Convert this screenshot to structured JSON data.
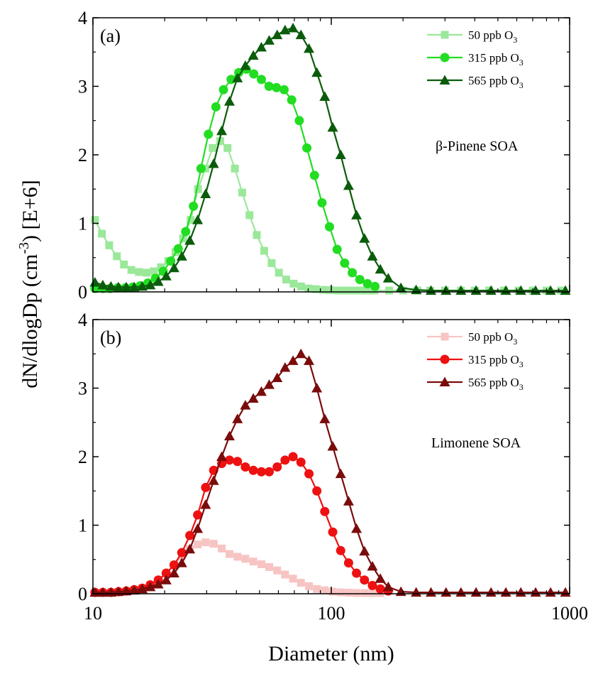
{
  "chart_data": [
    {
      "type": "line",
      "panel": "(a)",
      "annotation": "β-Pinene SOA",
      "xlabel": "",
      "ylabel": "",
      "xscale": "log",
      "xlim": [
        10,
        1000
      ],
      "ylim": [
        0,
        4
      ],
      "x_ticks": [
        10,
        100,
        1000
      ],
      "y_ticks": [
        0,
        1,
        2,
        3,
        4
      ],
      "x_tick_labels": [
        "",
        "",
        ""
      ],
      "y_tick_labels": [
        "0",
        "1",
        "2",
        "3",
        "4"
      ],
      "legend_position": "top-right",
      "series": [
        {
          "name": "50 ppb O3",
          "legend_base": "50 ppb O",
          "legend_sub": "3",
          "marker": "square",
          "color": "#9be89b",
          "x": [
            10.2,
            10.9,
            11.7,
            12.6,
            13.5,
            14.5,
            15.6,
            16.8,
            18.0,
            19.3,
            20.7,
            22.2,
            23.9,
            25.7,
            27.6,
            29.6,
            31.8,
            34.2,
            36.7,
            39.4,
            42.3,
            45.4,
            48.7,
            52.3,
            56.2,
            60.3,
            64.7,
            69.5,
            74.6,
            80.1,
            86.0,
            92.3,
            99.1,
            106.4,
            114.2,
            122.6,
            131.7,
            141.4,
            151.8,
            175,
            200,
            230,
            260,
            300,
            350,
            400,
            460,
            530,
            610,
            700,
            800,
            920
          ],
          "y": [
            1.05,
            0.85,
            0.68,
            0.52,
            0.4,
            0.32,
            0.29,
            0.28,
            0.3,
            0.36,
            0.45,
            0.58,
            0.78,
            1.05,
            1.5,
            1.8,
            2.1,
            2.2,
            2.1,
            1.8,
            1.45,
            1.12,
            0.83,
            0.6,
            0.42,
            0.28,
            0.18,
            0.12,
            0.08,
            0.05,
            0.04,
            0.03,
            0.025,
            0.02,
            0.02,
            0.02,
            0.02,
            0.02,
            0.02,
            0.02,
            0.02,
            0.02,
            0.02,
            0.02,
            0.02,
            0.02,
            0.02,
            0.02,
            0.02,
            0.02,
            0.02,
            0.02
          ]
        },
        {
          "name": "315 ppb O3",
          "legend_base": "315 ppb O",
          "legend_sub": "3",
          "marker": "circle",
          "color": "#22dd22",
          "x": [
            10.2,
            11.0,
            11.8,
            12.7,
            13.7,
            14.7,
            15.8,
            17.0,
            18.3,
            19.7,
            21.2,
            22.8,
            24.5,
            26.4,
            28.4,
            30.5,
            32.8,
            35.3,
            38.0,
            40.9,
            44.0,
            47.3,
            50.9,
            54.8,
            58.9,
            63.4,
            68.2,
            73.4,
            79.0,
            85.0,
            91.4,
            98.3,
            105.8,
            113.8,
            122.5,
            131.8,
            141.8,
            152.5
          ],
          "y": [
            0.05,
            0.05,
            0.05,
            0.06,
            0.06,
            0.07,
            0.09,
            0.13,
            0.2,
            0.3,
            0.45,
            0.63,
            0.88,
            1.25,
            1.8,
            2.3,
            2.7,
            2.95,
            3.1,
            3.2,
            3.25,
            3.18,
            3.1,
            3.0,
            2.98,
            2.95,
            2.8,
            2.5,
            2.1,
            1.7,
            1.3,
            0.95,
            0.62,
            0.42,
            0.28,
            0.18,
            0.12,
            0.08
          ]
        },
        {
          "name": "565 ppb O3",
          "legend_base": "565 ppb O",
          "legend_sub": "3",
          "marker": "triangle",
          "color": "#0a5c0a",
          "x": [
            10.2,
            11.0,
            11.9,
            12.8,
            13.8,
            14.9,
            16.1,
            17.4,
            18.8,
            20.3,
            21.9,
            23.6,
            25.5,
            27.5,
            29.7,
            32.1,
            34.7,
            37.4,
            40.4,
            43.6,
            47.1,
            50.9,
            54.9,
            59.3,
            64.0,
            69.1,
            74.6,
            80.6,
            87.0,
            93.9,
            101.4,
            109.5,
            118.2,
            127.6,
            137.8,
            148.8,
            160.6,
            173.4,
            196,
            227,
            262,
            303,
            350,
            405,
            468,
            540,
            624,
            720,
            832,
            960
          ],
          "y": [
            0.14,
            0.1,
            0.08,
            0.07,
            0.07,
            0.07,
            0.08,
            0.1,
            0.15,
            0.23,
            0.35,
            0.52,
            0.75,
            1.05,
            1.43,
            1.87,
            2.35,
            2.78,
            3.12,
            3.3,
            3.45,
            3.57,
            3.67,
            3.75,
            3.82,
            3.85,
            3.75,
            3.55,
            3.2,
            2.85,
            2.4,
            2.0,
            1.55,
            1.12,
            0.78,
            0.52,
            0.33,
            0.2,
            0.06,
            0.03,
            0.02,
            0.02,
            0.02,
            0.02,
            0.02,
            0.02,
            0.02,
            0.02,
            0.02,
            0.02
          ]
        }
      ]
    },
    {
      "type": "line",
      "panel": "(b)",
      "annotation": "Limonene SOA",
      "xlabel": "Diameter (nm)",
      "ylabel": "",
      "xscale": "log",
      "xlim": [
        10,
        1000
      ],
      "ylim": [
        0,
        4
      ],
      "x_ticks": [
        10,
        100,
        1000
      ],
      "y_ticks": [
        0,
        1,
        2,
        3,
        4
      ],
      "x_tick_labels": [
        "10",
        "100",
        "1000"
      ],
      "y_tick_labels": [
        "0",
        "1",
        "2",
        "3",
        "4"
      ],
      "legend_position": "top-right",
      "series": [
        {
          "name": "50 ppb O3",
          "legend_base": "50 ppb O",
          "legend_sub": "3",
          "marker": "square",
          "color": "#f7c4c4",
          "x": [
            10.2,
            11.0,
            11.9,
            12.8,
            13.8,
            14.9,
            16.1,
            17.4,
            18.8,
            20.3,
            21.9,
            23.6,
            25.5,
            27.5,
            29.7,
            32.1,
            34.7,
            37.4,
            40.4,
            43.6,
            47.1,
            50.9,
            54.9,
            59.3,
            64.0,
            69.1,
            74.6,
            80.6,
            87.0,
            93.9,
            101.4,
            109.5,
            118.2,
            127.6,
            137.8,
            148.8,
            160.6
          ],
          "y": [
            0.01,
            0.01,
            0.02,
            0.02,
            0.03,
            0.05,
            0.08,
            0.13,
            0.2,
            0.3,
            0.42,
            0.55,
            0.65,
            0.72,
            0.75,
            0.73,
            0.66,
            0.58,
            0.54,
            0.51,
            0.47,
            0.43,
            0.39,
            0.34,
            0.28,
            0.22,
            0.16,
            0.11,
            0.07,
            0.05,
            0.03,
            0.02,
            0.015,
            0.01,
            0.01,
            0.01,
            0.01
          ]
        },
        {
          "name": "315 ppb O3",
          "legend_base": "315 ppb O",
          "legend_sub": "3",
          "marker": "circle",
          "color": "#ee1111",
          "x": [
            10.2,
            11.0,
            11.9,
            12.8,
            13.8,
            14.9,
            16.1,
            17.4,
            18.8,
            20.3,
            21.9,
            23.6,
            25.5,
            27.5,
            29.7,
            32.1,
            34.7,
            37.4,
            40.4,
            43.6,
            47.1,
            50.9,
            54.9,
            59.3,
            64.0,
            69.1,
            74.6,
            80.6,
            87.0,
            93.9,
            101.4,
            109.5,
            118.2,
            127.6,
            137.8,
            148.8,
            160.6,
            173.4
          ],
          "y": [
            0.02,
            0.02,
            0.02,
            0.03,
            0.04,
            0.06,
            0.08,
            0.13,
            0.2,
            0.3,
            0.42,
            0.6,
            0.85,
            1.15,
            1.55,
            1.8,
            1.9,
            1.95,
            1.93,
            1.85,
            1.8,
            1.78,
            1.78,
            1.85,
            1.95,
            2.0,
            1.92,
            1.75,
            1.5,
            1.2,
            0.9,
            0.63,
            0.45,
            0.3,
            0.2,
            0.12,
            0.07,
            0.04
          ]
        },
        {
          "name": "565 ppb O3",
          "legend_base": "565 ppb O",
          "legend_sub": "3",
          "marker": "triangle",
          "color": "#7a0c0c",
          "x": [
            10.2,
            11.0,
            11.9,
            12.8,
            13.8,
            14.9,
            16.1,
            17.4,
            18.8,
            20.3,
            21.9,
            23.6,
            25.5,
            27.5,
            29.7,
            32.1,
            34.7,
            37.4,
            40.4,
            43.6,
            47.1,
            50.9,
            54.9,
            59.3,
            64.0,
            69.1,
            74.6,
            80.6,
            87.0,
            93.9,
            101.4,
            109.5,
            118.2,
            127.6,
            137.8,
            148.8,
            160.6,
            173.4,
            196,
            227,
            262,
            303,
            350,
            405,
            468,
            540,
            624,
            720,
            832,
            960
          ],
          "y": [
            0.02,
            0.02,
            0.02,
            0.03,
            0.04,
            0.05,
            0.07,
            0.1,
            0.14,
            0.2,
            0.3,
            0.45,
            0.65,
            0.95,
            1.3,
            1.65,
            2.0,
            2.3,
            2.55,
            2.75,
            2.85,
            2.95,
            3.05,
            3.15,
            3.3,
            3.4,
            3.5,
            3.4,
            3.0,
            2.55,
            2.15,
            1.75,
            1.35,
            0.95,
            0.62,
            0.4,
            0.22,
            0.1,
            0.03,
            0.02,
            0.02,
            0.02,
            0.02,
            0.02,
            0.02,
            0.02,
            0.02,
            0.02,
            0.02,
            0.02
          ]
        }
      ]
    }
  ],
  "shared_ylabel": {
    "prefix": "dN/dlogDp (cm",
    "sup": "-3",
    "suffix": ") [E+6]"
  }
}
